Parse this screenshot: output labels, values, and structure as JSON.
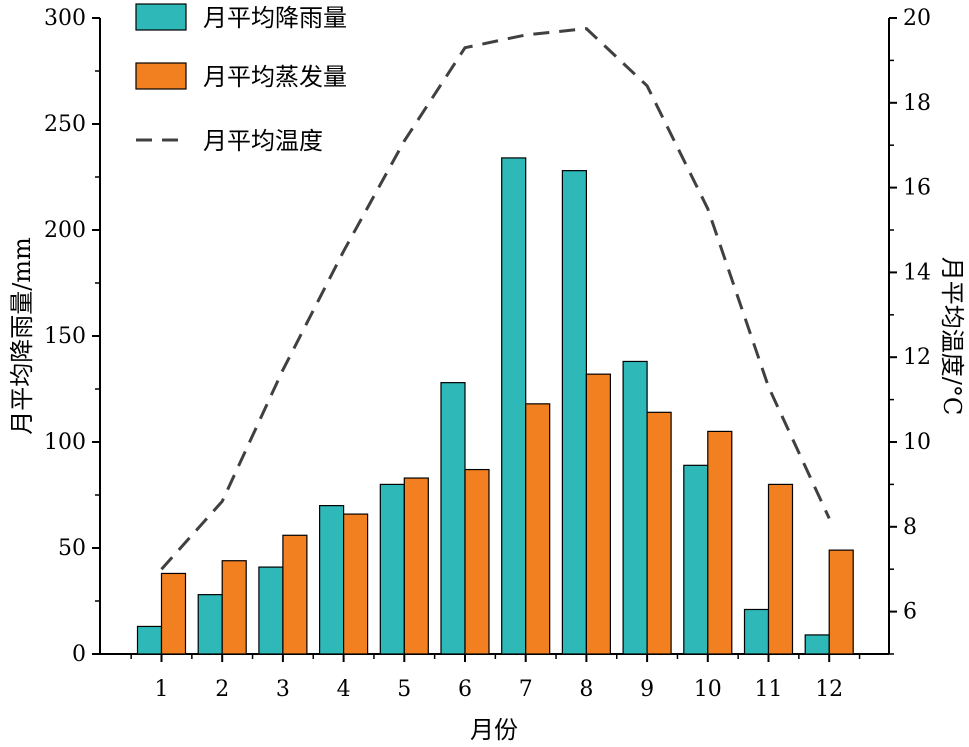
{
  "chart_data": {
    "type": "bar",
    "categories": [
      "1",
      "2",
      "3",
      "4",
      "5",
      "6",
      "7",
      "8",
      "9",
      "10",
      "11",
      "12"
    ],
    "series": [
      {
        "name": "月平均降雨量",
        "type": "bar",
        "axis": "left",
        "color": "#2EB8B8",
        "values": [
          13,
          28,
          41,
          70,
          80,
          128,
          234,
          228,
          138,
          89,
          21,
          9
        ]
      },
      {
        "name": "月平均蒸发量",
        "type": "bar",
        "axis": "left",
        "color": "#F28020",
        "values": [
          38,
          44,
          56,
          66,
          83,
          87,
          118,
          132,
          114,
          105,
          80,
          49
        ]
      },
      {
        "name": "月平均温度",
        "type": "line",
        "axis": "right",
        "color": "#404040",
        "dash": "dashed",
        "values": [
          7.0,
          8.6,
          11.7,
          14.5,
          17.1,
          19.3,
          19.6,
          19.75,
          18.4,
          15.5,
          11.3,
          8.2
        ]
      }
    ],
    "xlabel": "月份",
    "ylabel_left": "月平均降雨量/mm",
    "ylabel_right": "月平均温度/°C",
    "ylim_left": [
      0,
      300
    ],
    "yticks_left": [
      0,
      50,
      100,
      150,
      200,
      250,
      300
    ],
    "ylim_right": [
      5,
      20
    ],
    "yticks_right": [
      6,
      8,
      10,
      12,
      14,
      16,
      18,
      20
    ],
    "grid": false,
    "legend_position": "top-left"
  }
}
